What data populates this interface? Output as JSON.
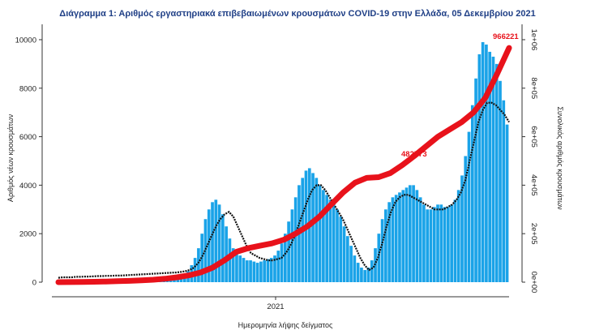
{
  "chart_data": {
    "type": "bar",
    "title": "Διάγραμμα 1: Αριθμός εργαστηριακά επιβεβαιωμένων κρουσμάτων COVID-19 στην Ελλάδα, 05 Δεκεμβρίου 2021",
    "xlabel": "Ημερομηνία λήψης δείγματος",
    "ylabel": "Αριθμός νέων κρουσμάτων",
    "y2label": "Συνολικός αριθμός κρουσμάτων",
    "x_tick_labels": [
      "2021"
    ],
    "y_ticks": [
      "0",
      "2000",
      "4000",
      "6000",
      "8000",
      "10000"
    ],
    "y2_ticks": [
      "0e+00",
      "2e+05",
      "4e+05",
      "6e+05",
      "8e+05",
      "1e+06"
    ],
    "ylim": [
      0,
      10500
    ],
    "y2lim": [
      0,
      1050000
    ],
    "series": [
      {
        "name": "daily",
        "type": "bar",
        "color": "#1aa3e8",
        "values": [
          10,
          10,
          12,
          12,
          15,
          15,
          18,
          20,
          22,
          25,
          25,
          30,
          30,
          35,
          35,
          40,
          40,
          45,
          45,
          50,
          50,
          55,
          60,
          60,
          60,
          65,
          65,
          70,
          70,
          80,
          90,
          100,
          110,
          130,
          160,
          200,
          300,
          450,
          700,
          1000,
          1400,
          2000,
          2600,
          3000,
          3300,
          3400,
          3200,
          2800,
          2300,
          1800,
          1400,
          1200,
          1100,
          1000,
          900,
          900,
          850,
          800,
          850,
          900,
          950,
          1000,
          1100,
          1300,
          1600,
          2000,
          2500,
          3000,
          3500,
          4000,
          4300,
          4600,
          4700,
          4500,
          4300,
          4000,
          3800,
          3600,
          3400,
          3200,
          3000,
          2700,
          2300,
          1900,
          1500,
          1100,
          800,
          600,
          500,
          600,
          900,
          1400,
          2000,
          2600,
          3000,
          3300,
          3500,
          3600,
          3700,
          3800,
          3900,
          4000,
          4000,
          3800,
          3500,
          3200,
          3000,
          3000,
          3100,
          3200,
          3200,
          3100,
          3100,
          3200,
          3400,
          3800,
          4400,
          5200,
          6200,
          7300,
          8400,
          9400,
          9900,
          9800,
          9500,
          9300,
          9000,
          8300,
          7500,
          6500
        ]
      },
      {
        "name": "cumulative",
        "type": "line",
        "color": "#e8121b",
        "values": [
          0,
          500,
          1000,
          1800,
          2800,
          4000,
          5500,
          7500,
          10000,
          14000,
          20000,
          28000,
          40000,
          60000,
          90000,
          125000,
          140000,
          150000,
          160000,
          175000,
          200000,
          230000,
          270000,
          320000,
          370000,
          410000,
          430000,
          433000,
          450000,
          482773,
          520000,
          560000,
          600000,
          630000,
          660000,
          700000,
          760000,
          860000,
          966221
        ]
      },
      {
        "name": "rolling",
        "type": "line",
        "color": "#111111",
        "values": [
          180,
          200,
          200,
          200,
          220,
          220,
          230,
          230,
          240,
          250,
          250,
          260,
          260,
          270,
          270,
          280,
          290,
          300,
          310,
          320,
          330,
          340,
          350,
          360,
          370,
          380,
          390,
          400,
          420,
          450,
          500,
          600,
          800,
          1100,
          1500,
          1900,
          2300,
          2600,
          2800,
          2900,
          2700,
          2300,
          1900,
          1500,
          1200,
          1100,
          1000,
          950,
          900,
          900,
          950,
          1000,
          1200,
          1500,
          1900,
          2400,
          2900,
          3400,
          3800,
          4000,
          4000,
          3800,
          3500,
          3200,
          2900,
          2600,
          2200,
          1800,
          1400,
          1000,
          700,
          500,
          600,
          1000,
          1600,
          2300,
          2900,
          3300,
          3500,
          3600,
          3600,
          3500,
          3400,
          3300,
          3200,
          3100,
          3000,
          3000,
          3000,
          3100,
          3200,
          3400,
          3700,
          4200,
          5000,
          5800,
          6600,
          7100,
          7400,
          7400,
          7300,
          7100,
          6900,
          6600
        ]
      }
    ],
    "annotations": [
      "966221",
      "482773",
      "2021"
    ],
    "legend": "none",
    "grid": false
  }
}
